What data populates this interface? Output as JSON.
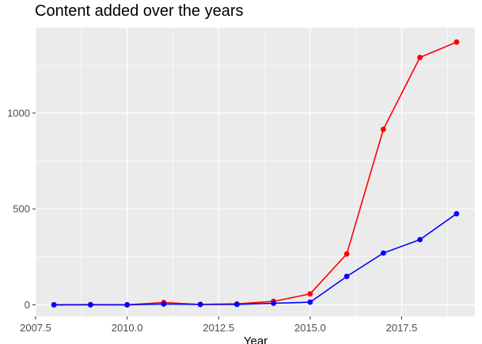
{
  "chart_data": {
    "type": "line",
    "title": "Content added over the years",
    "xlabel": "Year",
    "ylabel": "",
    "xlim": [
      2007.5,
      2019.5
    ],
    "ylim": [
      -60,
      1445
    ],
    "x_ticks": [
      2007.5,
      2010.0,
      2012.5,
      2015.0,
      2017.5
    ],
    "x_tick_labels": [
      "2007.5",
      "2010.0",
      "2012.5",
      "2015.0",
      "2017.5"
    ],
    "y_ticks": [
      0,
      500,
      1000
    ],
    "y_tick_labels": [
      "0",
      "500",
      "1000"
    ],
    "grid": true,
    "legend": "none",
    "colors": {
      "panel": "#EBEBEB",
      "grid": "#FFFFFF",
      "axis_text": "#4D4D4D"
    },
    "x": [
      2008,
      2009,
      2010,
      2011,
      2012,
      2013,
      2014,
      2015,
      2016,
      2017,
      2018,
      2019
    ],
    "series": [
      {
        "color": "#FF0000",
        "values": [
          0,
          1,
          0,
          12,
          2,
          5,
          18,
          57,
          265,
          915,
          1290,
          1370
        ]
      },
      {
        "color": "#0000FF",
        "values": [
          0,
          0,
          0,
          4,
          2,
          2,
          8,
          14,
          148,
          270,
          340,
          475
        ]
      }
    ]
  }
}
